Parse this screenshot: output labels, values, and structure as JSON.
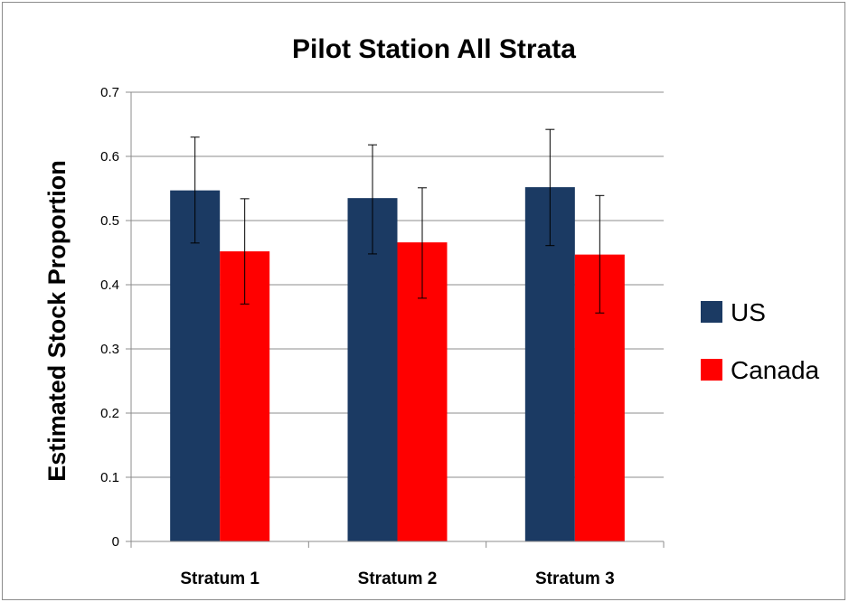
{
  "chart_data": {
    "type": "bar",
    "title": "Pilot Station All Strata",
    "xlabel": "",
    "ylabel": "Estimated Stock Proportion",
    "categories": [
      "Stratum 1",
      "Stratum 2",
      "Stratum 3"
    ],
    "ylim": [
      0,
      0.7
    ],
    "yticks": [
      "0",
      "0.1",
      "0.2",
      "0.3",
      "0.4",
      "0.5",
      "0.6",
      "0.7"
    ],
    "grid": true,
    "legend_position": "right",
    "series": [
      {
        "name": "US",
        "color": "#1b3a63",
        "values": [
          0.547,
          0.535,
          0.552
        ],
        "error_low": [
          0.465,
          0.448,
          0.461
        ],
        "error_high": [
          0.63,
          0.618,
          0.642
        ]
      },
      {
        "name": "Canada",
        "color": "#ff0000",
        "values": [
          0.452,
          0.466,
          0.447
        ],
        "error_low": [
          0.37,
          0.379,
          0.356
        ],
        "error_high": [
          0.534,
          0.551,
          0.539
        ]
      }
    ]
  }
}
